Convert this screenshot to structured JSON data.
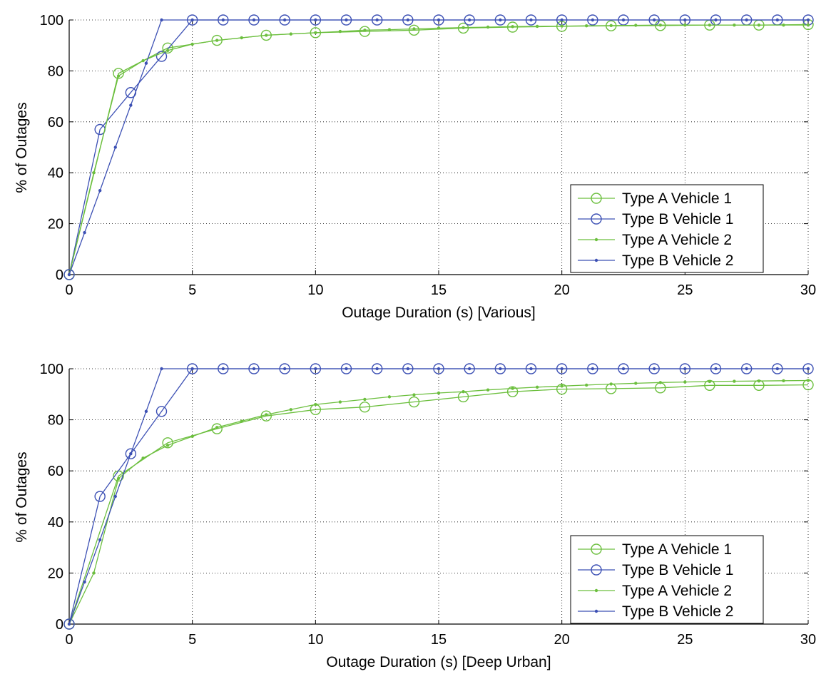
{
  "chart_data": [
    {
      "type": "line",
      "title": "",
      "xlabel": "Outage Duration (s) [Various]",
      "ylabel": "% of Outages",
      "xlim": [
        0,
        30
      ],
      "ylim": [
        0,
        100
      ],
      "xticks": [
        0,
        5,
        10,
        15,
        20,
        25,
        30
      ],
      "yticks": [
        0,
        20,
        40,
        60,
        80,
        100
      ],
      "grid": true,
      "legend_position": "bottom-right",
      "series": [
        {
          "name": "Type A Vehicle 1",
          "color": "#6cbf3e",
          "marker": "circle",
          "x": [
            0,
            2,
            4,
            6,
            8,
            10,
            12,
            14,
            16,
            18,
            20,
            22,
            24,
            26,
            28,
            30
          ],
          "y": [
            0,
            79,
            89,
            92,
            94,
            95,
            95.5,
            96,
            96.8,
            97.2,
            97.5,
            97.7,
            97.8,
            98,
            98,
            98.2
          ]
        },
        {
          "name": "Type B Vehicle 1",
          "color": "#3c50b4",
          "marker": "circle",
          "x": [
            0,
            1.25,
            2.5,
            3.75,
            5,
            6.25,
            7.5,
            8.75,
            10,
            11.25,
            12.5,
            13.75,
            15,
            16.25,
            17.5,
            18.75,
            20,
            21.25,
            22.5,
            23.75,
            25,
            26.25,
            27.5,
            28.75,
            30
          ],
          "y": [
            0,
            57,
            71.5,
            85.7,
            100,
            100,
            100,
            100,
            100,
            100,
            100,
            100,
            100,
            100,
            100,
            100,
            100,
            100,
            100,
            100,
            100,
            100,
            100,
            100,
            100
          ]
        },
        {
          "name": "Type A Vehicle 2",
          "color": "#6cbf3e",
          "marker": "dot",
          "x": [
            0,
            1,
            2,
            3,
            4,
            5,
            6,
            7,
            8,
            9,
            10,
            11,
            12,
            13,
            14,
            15,
            16,
            17,
            18,
            19,
            20,
            21,
            22,
            23,
            24,
            25,
            26,
            27,
            28,
            29,
            30
          ],
          "y": [
            0,
            40,
            78,
            84,
            88,
            90.5,
            92,
            93,
            94,
            94.5,
            95,
            95.5,
            96,
            96.2,
            96.5,
            96.8,
            97,
            97.2,
            97.4,
            97.5,
            97.6,
            97.7,
            97.8,
            97.9,
            98,
            98,
            98,
            98,
            98,
            98,
            98
          ]
        },
        {
          "name": "Type B Vehicle 2",
          "color": "#3c50b4",
          "marker": "dot",
          "x": [
            0,
            0.625,
            1.25,
            1.875,
            2.5,
            3.125,
            3.75,
            5,
            6.25,
            7.5,
            8.75,
            10,
            11.25,
            12.5,
            13.75,
            15,
            16.25,
            17.5,
            18.75,
            20,
            21.25,
            22.5,
            23.75,
            25,
            26.25,
            27.5,
            28.75,
            30
          ],
          "y": [
            0,
            16.5,
            33,
            50,
            66.5,
            83,
            100,
            100,
            100,
            100,
            100,
            100,
            100,
            100,
            100,
            100,
            100,
            100,
            100,
            100,
            100,
            100,
            100,
            100,
            100,
            100,
            100,
            100
          ]
        }
      ]
    },
    {
      "type": "line",
      "title": "",
      "xlabel": "Outage Duration (s) [Deep Urban]",
      "ylabel": "% of Outages",
      "xlim": [
        0,
        30
      ],
      "ylim": [
        0,
        100
      ],
      "xticks": [
        0,
        5,
        10,
        15,
        20,
        25,
        30
      ],
      "yticks": [
        0,
        20,
        40,
        60,
        80,
        100
      ],
      "grid": true,
      "legend_position": "bottom-right",
      "series": [
        {
          "name": "Type A Vehicle 1",
          "color": "#6cbf3e",
          "marker": "circle",
          "x": [
            0,
            2,
            4,
            6,
            8,
            10,
            12,
            14,
            16,
            18,
            20,
            22,
            24,
            26,
            28,
            30
          ],
          "y": [
            0,
            58,
            71,
            76.5,
            81.5,
            84,
            85,
            87,
            89,
            91,
            92,
            92.2,
            92.5,
            93.5,
            93.5,
            93.7
          ]
        },
        {
          "name": "Type B Vehicle 1",
          "color": "#3c50b4",
          "marker": "circle",
          "x": [
            0,
            1.25,
            2.5,
            3.75,
            5,
            6.25,
            7.5,
            8.75,
            10,
            11.25,
            12.5,
            13.75,
            15,
            16.25,
            17.5,
            18.75,
            20,
            21.25,
            22.5,
            23.75,
            25,
            26.25,
            27.5,
            28.75,
            30
          ],
          "y": [
            0,
            50,
            66.7,
            83.3,
            100,
            100,
            100,
            100,
            100,
            100,
            100,
            100,
            100,
            100,
            100,
            100,
            100,
            100,
            100,
            100,
            100,
            100,
            100,
            100,
            100
          ]
        },
        {
          "name": "Type A Vehicle 2",
          "color": "#6cbf3e",
          "marker": "dot",
          "x": [
            0,
            1,
            2,
            3,
            4,
            5,
            6,
            7,
            8,
            9,
            10,
            11,
            12,
            13,
            14,
            15,
            16,
            17,
            18,
            19,
            20,
            21,
            22,
            23,
            24,
            25,
            26,
            27,
            28,
            29,
            30
          ],
          "y": [
            0,
            20,
            57,
            65,
            70,
            73.5,
            77,
            79.5,
            82,
            84,
            86,
            87,
            88,
            89,
            89.8,
            90.5,
            91,
            91.7,
            92.3,
            92.8,
            93.2,
            93.6,
            94,
            94.3,
            94.6,
            94.8,
            95,
            95.1,
            95.2,
            95.3,
            95.4
          ]
        },
        {
          "name": "Type B Vehicle 2",
          "color": "#3c50b4",
          "marker": "dot",
          "x": [
            0,
            0.625,
            1.25,
            1.875,
            2.5,
            3.125,
            3.75,
            5,
            6.25,
            7.5,
            8.75,
            10,
            11.25,
            12.5,
            13.75,
            15,
            16.25,
            17.5,
            18.75,
            20,
            21.25,
            22.5,
            23.75,
            25,
            26.25,
            27.5,
            28.75,
            30
          ],
          "y": [
            0,
            16.5,
            33,
            50,
            66.7,
            83.3,
            100,
            100,
            100,
            100,
            100,
            100,
            100,
            100,
            100,
            100,
            100,
            100,
            100,
            100,
            100,
            100,
            100,
            100,
            100,
            100,
            100,
            100
          ]
        }
      ]
    }
  ]
}
